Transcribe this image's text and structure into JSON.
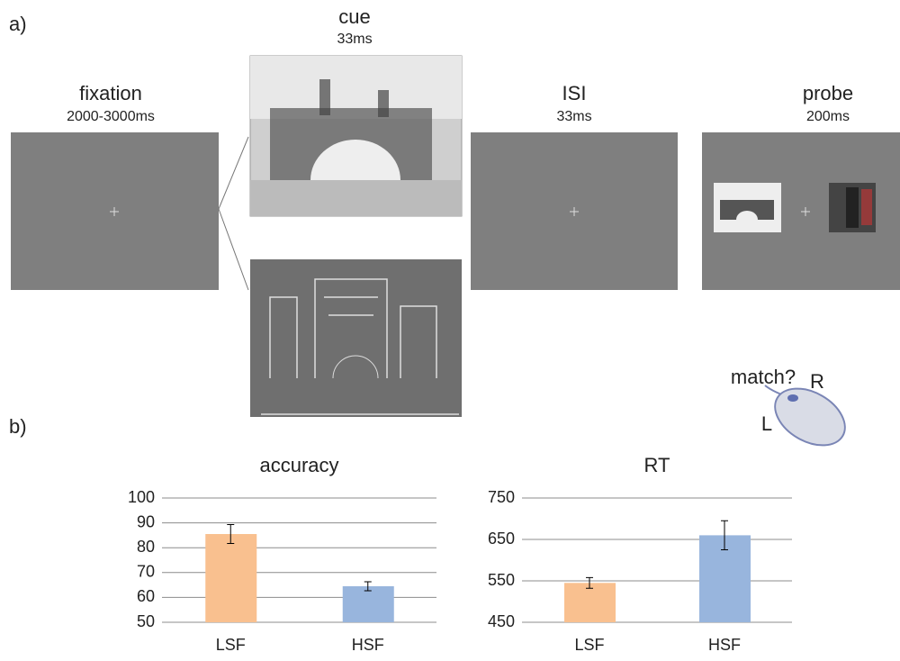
{
  "labels": {
    "a": "a)",
    "b": "b)"
  },
  "stages": [
    {
      "name": "fixation",
      "duration": "2000-3000ms"
    },
    {
      "name": "cue",
      "duration": "33ms"
    },
    {
      "name": "ISI",
      "duration": "33ms"
    },
    {
      "name": "probe",
      "duration": "200ms"
    }
  ],
  "response": {
    "prompt": "match?",
    "left": "L",
    "right": "R"
  },
  "chart_data": [
    {
      "type": "bar",
      "title": "accuracy",
      "categories": [
        "LSF",
        "HSF"
      ],
      "values": [
        85.5,
        64.5
      ],
      "errors": [
        3.8,
        1.8
      ],
      "colors": [
        "#f9c08f",
        "#98b5dd"
      ],
      "ylim": [
        50,
        100
      ],
      "yticks": [
        50,
        60,
        70,
        80,
        90,
        100
      ],
      "grid": true
    },
    {
      "type": "bar",
      "title": "RT",
      "categories": [
        "LSF",
        "HSF"
      ],
      "values": [
        545,
        660
      ],
      "errors": [
        13,
        35
      ],
      "colors": [
        "#f9c08f",
        "#98b5dd"
      ],
      "ylim": [
        450,
        750
      ],
      "yticks": [
        450,
        550,
        650,
        750
      ],
      "grid": true
    }
  ]
}
